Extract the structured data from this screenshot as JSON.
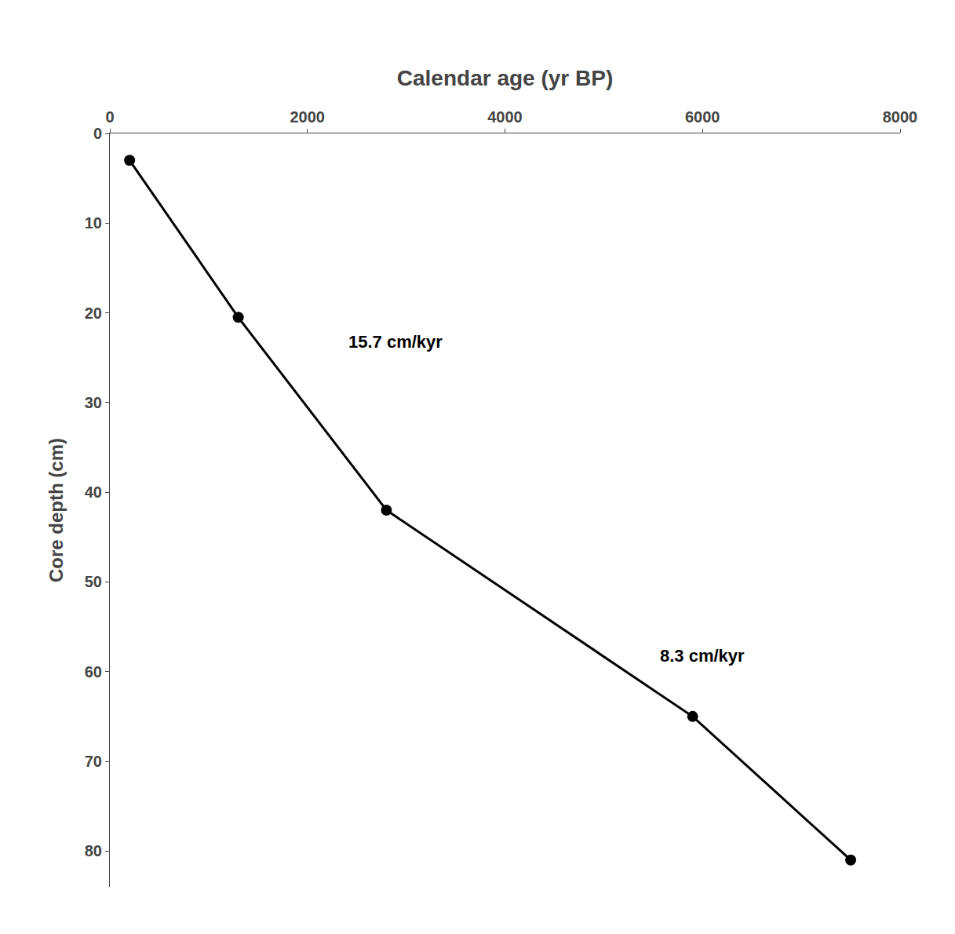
{
  "chart_data": {
    "type": "line",
    "x_label": "Calendar age (yr BP)",
    "y_label": "Core depth (cm)",
    "x": [
      200,
      1300,
      2800,
      5900,
      7500
    ],
    "values": [
      3,
      20.5,
      42,
      65,
      81
    ],
    "color": "#000000",
    "marker": "circle",
    "xlim": [
      0,
      8000
    ],
    "ylim": [
      84,
      0
    ],
    "xticks": [
      0,
      2000,
      4000,
      6000,
      8000
    ],
    "yticks": [
      0,
      10,
      20,
      30,
      40,
      50,
      60,
      70,
      80
    ],
    "grid": false,
    "annotations": [
      {
        "text": "15.7 cm/kyr",
        "x": 2400,
        "y": 22
      },
      {
        "text": "8.3 cm/kyr",
        "x": 5550,
        "y": 57
      }
    ]
  }
}
